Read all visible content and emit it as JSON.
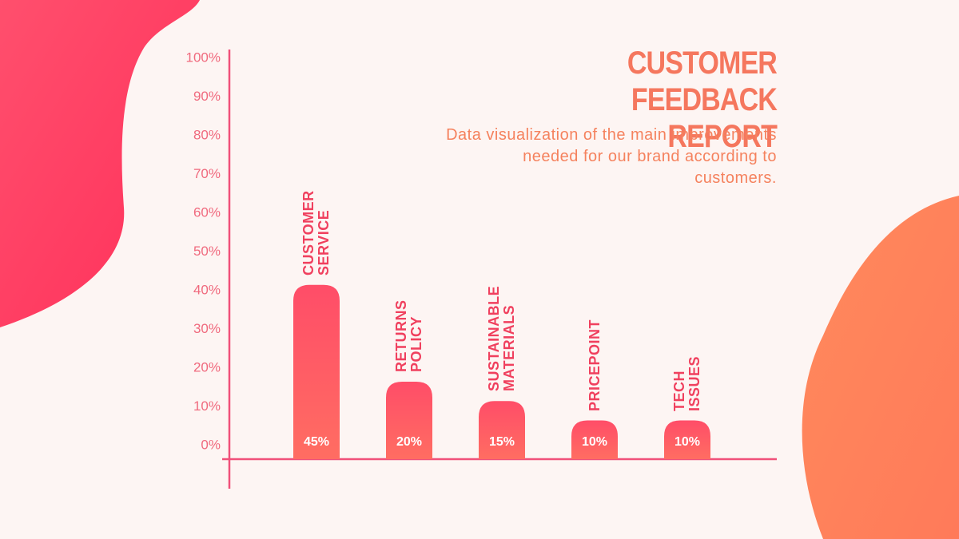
{
  "chart_data": {
    "type": "bar",
    "title": "CUSTOMER FEEDBACK REPORT",
    "subtitle": "Data visualization of the main improvements needed for our brand according to customers.",
    "categories": [
      "CUSTOMER SERVICE",
      "RETURNS POLICY",
      "SUSTAINABLE MATERIALS",
      "PRICEPOINT",
      "TECH ISSUES"
    ],
    "values": [
      45,
      20,
      15,
      10,
      10
    ],
    "value_labels": [
      "45%",
      "20%",
      "15%",
      "10%",
      "10%"
    ],
    "color": "#ff5468",
    "ylim": [
      0,
      100
    ],
    "yticks": [
      {
        "value": 0,
        "label": "0%"
      },
      {
        "value": 10,
        "label": "10%"
      },
      {
        "value": 20,
        "label": "20%"
      },
      {
        "value": 30,
        "label": "30%"
      },
      {
        "value": 40,
        "label": "40%"
      },
      {
        "value": 50,
        "label": "50%"
      },
      {
        "value": 60,
        "label": "60%"
      },
      {
        "value": 70,
        "label": "70%"
      },
      {
        "value": 80,
        "label": "80%"
      },
      {
        "value": 90,
        "label": "90%"
      },
      {
        "value": 100,
        "label": "100%"
      }
    ]
  }
}
